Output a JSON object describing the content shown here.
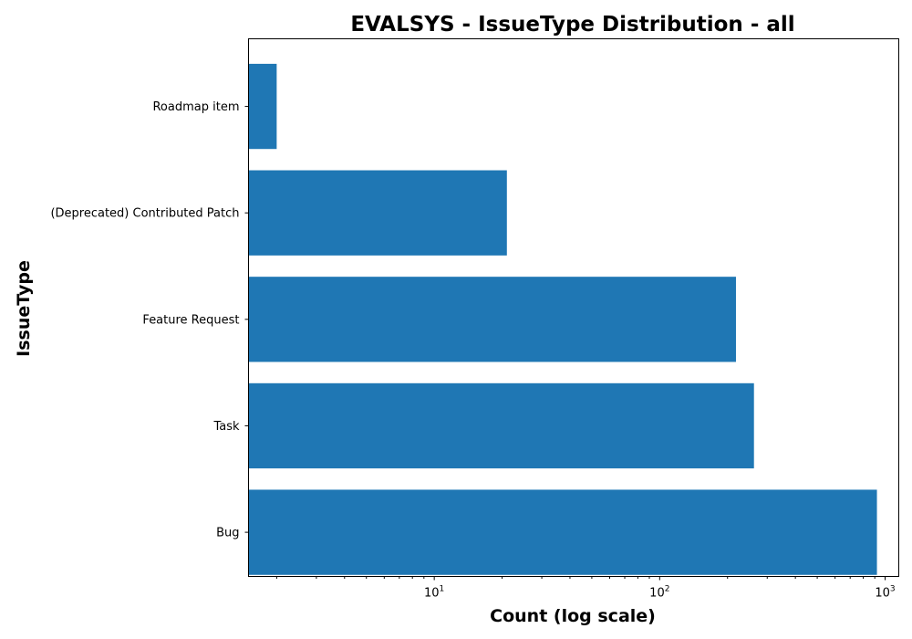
{
  "chart_data": {
    "type": "bar",
    "orientation": "horizontal",
    "title": "EVALSYS - IssueType Distribution - all",
    "xlabel": "Count (log scale)",
    "ylabel": "IssueType",
    "xscale": "log",
    "xlim": [
      1.5,
      1150
    ],
    "categories": [
      "Roadmap item",
      "(Deprecated) Contributed Patch",
      "Feature Request",
      "Task",
      "Bug"
    ],
    "values": [
      2,
      21,
      218,
      262,
      920
    ],
    "x_ticks": [
      {
        "value": 10,
        "base": "10",
        "exp": "1"
      },
      {
        "value": 100,
        "base": "10",
        "exp": "2"
      },
      {
        "value": 1000,
        "base": "10",
        "exp": "3"
      }
    ],
    "color": "#1f77b4",
    "grid": false,
    "legend": "none"
  }
}
